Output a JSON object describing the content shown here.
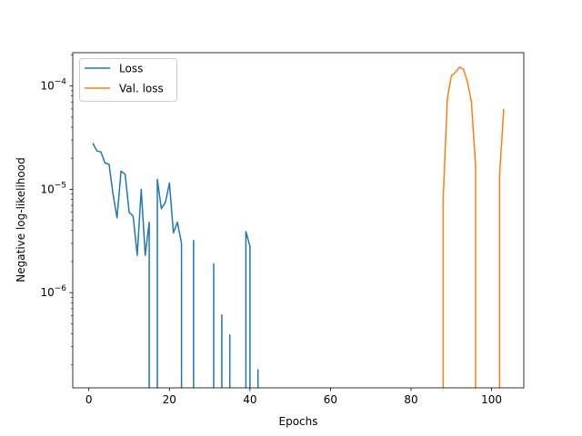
{
  "chart_data": {
    "type": "line",
    "title": "",
    "xlabel": "Epochs",
    "ylabel": "Negative log-likelihood",
    "xlim": [
      -4,
      108
    ],
    "ylim": [
      1.2e-07,
      0.00021
    ],
    "yscale": "log",
    "grid": false,
    "legend_position": "top-left",
    "x_ticks": [
      0,
      20,
      40,
      60,
      80,
      100
    ],
    "x_tick_labels": [
      "0",
      "20",
      "40",
      "60",
      "80",
      "100"
    ],
    "y_ticks": [
      1e-06,
      1e-05,
      0.0001
    ],
    "y_tick_labels": [
      {
        "base": "10",
        "exp": "−6"
      },
      {
        "base": "10",
        "exp": "−5"
      },
      {
        "base": "10",
        "exp": "−4"
      }
    ],
    "series": [
      {
        "name": "Loss",
        "color": "#1f77b4",
        "segments": [
          [
            [
              1,
              2.8e-05
            ],
            [
              2,
              2.35e-05
            ],
            [
              3,
              2.3e-05
            ],
            [
              4,
              1.8e-05
            ],
            [
              5,
              1.75e-05
            ],
            [
              6,
              9e-06
            ],
            [
              7,
              5.3e-06
            ],
            [
              8,
              1.5e-05
            ],
            [
              9,
              1.4e-05
            ],
            [
              10,
              6e-06
            ],
            [
              11,
              5.5e-06
            ],
            [
              12,
              2.3e-06
            ],
            [
              13,
              1e-05
            ],
            [
              14,
              2.3e-06
            ],
            [
              15,
              4.8e-06
            ],
            [
              15,
              1.2e-07
            ]
          ],
          [
            [
              17,
              1.2e-07
            ],
            [
              17,
              1.25e-05
            ],
            [
              18,
              6.5e-06
            ],
            [
              19,
              7.5e-06
            ],
            [
              20,
              1.15e-05
            ],
            [
              21,
              3.8e-06
            ],
            [
              22,
              4.8e-06
            ],
            [
              23,
              3e-06
            ],
            [
              23,
              1.2e-07
            ]
          ],
          [
            [
              26,
              1.2e-07
            ],
            [
              26,
              3.2e-06
            ],
            [
              26,
              1.2e-07
            ]
          ],
          [
            [
              31,
              1.2e-07
            ],
            [
              31,
              1.9e-06
            ],
            [
              31,
              1.2e-07
            ]
          ],
          [
            [
              33,
              1.2e-07
            ],
            [
              33,
              6.1e-07
            ],
            [
              33,
              1.2e-07
            ]
          ],
          [
            [
              35,
              1.2e-07
            ],
            [
              35,
              3.9e-07
            ],
            [
              35,
              1.2e-07
            ]
          ],
          [
            [
              39,
              1.2e-07
            ],
            [
              39,
              3.9e-06
            ],
            [
              40,
              2.8e-06
            ],
            [
              40,
              1.2e-07
            ]
          ],
          [
            [
              42,
              1.2e-07
            ],
            [
              42,
              1.8e-07
            ],
            [
              42,
              1.2e-07
            ]
          ]
        ]
      },
      {
        "name": "Val. loss",
        "color": "#ff7f0e",
        "segments": [
          [
            [
              88,
              1.2e-07
            ],
            [
              88,
              8.5e-06
            ],
            [
              89,
              7.5e-05
            ],
            [
              90,
              0.000125
            ],
            [
              91,
              0.000135
            ],
            [
              92,
              0.000152
            ],
            [
              93,
              0.000145
            ],
            [
              94,
              0.00011
            ],
            [
              95,
              7e-05
            ],
            [
              96,
              1.7e-05
            ],
            [
              96,
              1.2e-07
            ]
          ],
          [
            [
              102,
              1.2e-07
            ],
            [
              102,
              1.4e-05
            ],
            [
              103,
              6e-05
            ]
          ]
        ]
      }
    ]
  }
}
